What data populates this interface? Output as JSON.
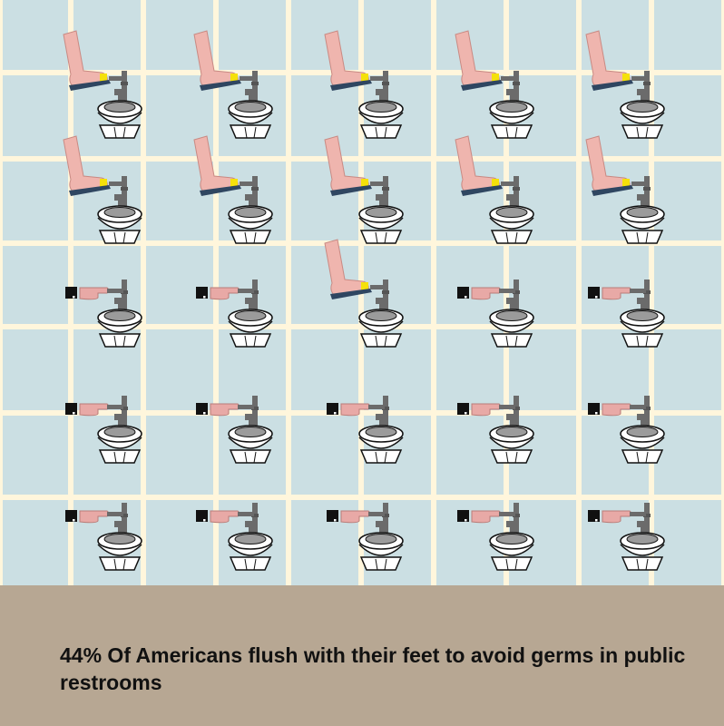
{
  "caption": "44% Of Americans flush with their feet to avoid germs in public restrooms",
  "colors": {
    "tile": "#cbdfe3",
    "grout": "#fff6dc",
    "floor": "#b7a793",
    "foot_skin": "#efb5ae",
    "shoe_sole": "#2f4661",
    "handle_highlight": "#f5e10a",
    "pipe": "#6b6b6b",
    "toilet_body": "#ffffff",
    "toilet_seat": "#9b9b9b",
    "sleeve": "#111111",
    "hand_skin": "#e8a9a6"
  },
  "chart_data": {
    "type": "pictogram",
    "title": "44% Of Americans flush with their feet to avoid germs in public restrooms",
    "percent_flush_with_feet": 44,
    "total_icons": 25,
    "rows": 5,
    "columns": 5,
    "icons": [
      "foot-flush",
      "foot-flush",
      "foot-flush",
      "foot-flush",
      "foot-flush",
      "foot-flush",
      "foot-flush",
      "foot-flush",
      "foot-flush",
      "foot-flush",
      "hand-flush",
      "hand-flush",
      "foot-flush",
      "hand-flush",
      "hand-flush",
      "hand-flush",
      "hand-flush",
      "hand-flush",
      "hand-flush",
      "hand-flush",
      "hand-flush",
      "hand-flush",
      "hand-flush",
      "hand-flush",
      "hand-flush"
    ]
  }
}
